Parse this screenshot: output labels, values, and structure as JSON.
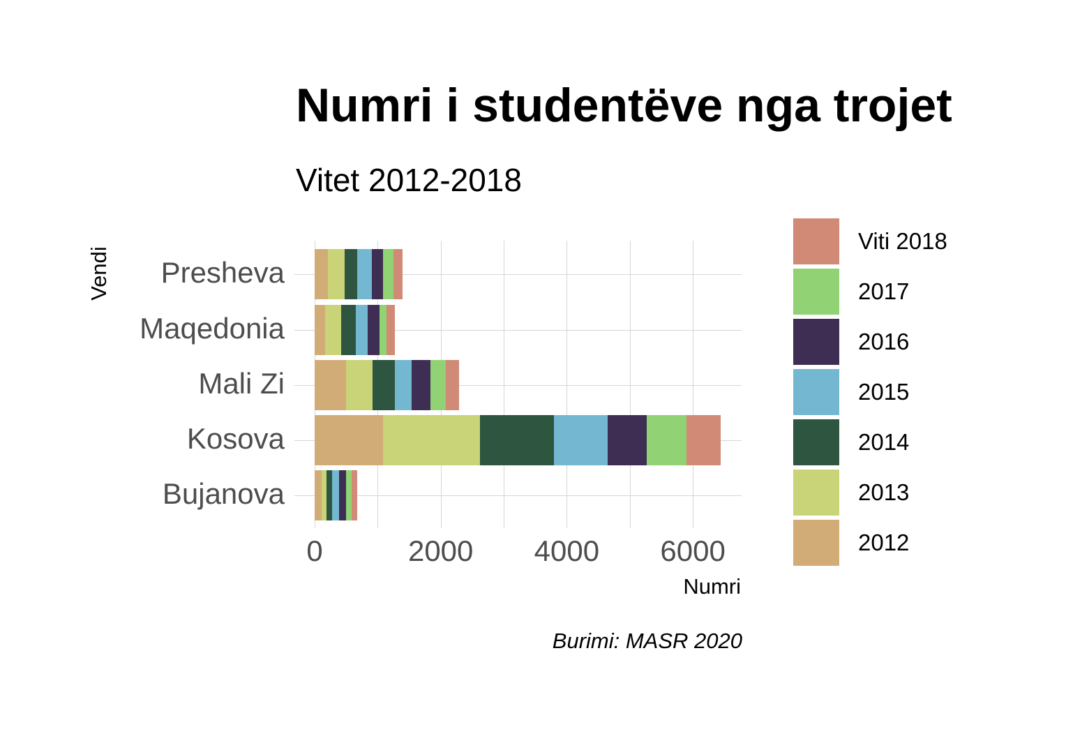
{
  "chart_data": {
    "type": "bar",
    "orientation": "horizontal",
    "stacked": true,
    "title": "Numri i studentëve nga trojet",
    "subtitle": "Vitet 2012-2018",
    "xlabel": "Numri",
    "ylabel": "Vendi",
    "caption": "Burimi: MASR 2020",
    "xlim": [
      0,
      6800
    ],
    "xticks": [
      0,
      2000,
      4000,
      6000
    ],
    "xtick_labels": [
      "0",
      "2000",
      "4000",
      "6000"
    ],
    "grid": true,
    "legend_position": "right",
    "categories": [
      "Presheva",
      "Maqedonia",
      "Mali Zi",
      "Kosova",
      "Bujanova"
    ],
    "series": [
      {
        "name": "2012",
        "color": "#D2AC77",
        "values": [
          210,
          170,
          500,
          1085,
          110
        ]
      },
      {
        "name": "2013",
        "color": "#C9D377",
        "values": [
          270,
          250,
          420,
          1540,
          80
        ]
      },
      {
        "name": "2014",
        "color": "#2D5540",
        "values": [
          200,
          230,
          350,
          1175,
          90
        ]
      },
      {
        "name": "2015",
        "color": "#74B7D1",
        "values": [
          230,
          190,
          270,
          850,
          110
        ]
      },
      {
        "name": "2016",
        "color": "#3F2E53",
        "values": [
          170,
          190,
          300,
          620,
          110
        ]
      },
      {
        "name": "2017",
        "color": "#90D274",
        "values": [
          170,
          110,
          240,
          630,
          90
        ]
      },
      {
        "name": "Viti 2018",
        "color": "#D08A76",
        "values": [
          140,
          130,
          210,
          545,
          90
        ]
      }
    ],
    "legend": [
      "Viti 2018",
      "2017",
      "2016",
      "2015",
      "2014",
      "2013",
      "2012"
    ]
  }
}
